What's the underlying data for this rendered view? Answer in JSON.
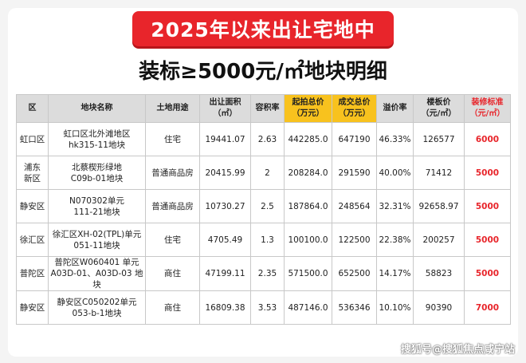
{
  "banner": "2025年以来出让宅地中",
  "subtitle": "装标≥5000元/㎡地块明细",
  "headers": [
    "区",
    "地块名称",
    "土地用途",
    "出让面积\n（㎡）",
    "容积率",
    "起拍总价\n（万元）",
    "成交总价\n（万元）",
    "溢价率",
    "楼板价\n（元/㎡）",
    "装修标准\n（元/㎡）"
  ],
  "rows": [
    {
      "district": "虹口区",
      "name_l1": "虹口区北外滩地区",
      "name_l2": "hk315-11地块",
      "use": "住宅",
      "area": "19441.07",
      "far": "2.63",
      "start": "442285.0",
      "deal": "647190",
      "premium": "46.33%",
      "floor": "126577",
      "deco": "6000"
    },
    {
      "district": "浦东\n新区",
      "name_l1": "北蔡楔形绿地",
      "name_l2": "C09b-01地块",
      "use": "普通商品房",
      "area": "20415.99",
      "far": "2",
      "start": "208284.0",
      "deal": "291590",
      "premium": "40.00%",
      "floor": "71412",
      "deco": "5000"
    },
    {
      "district": "静安区",
      "name_l1": "N070302单元",
      "name_l2": "111-21地块",
      "use": "普通商品房",
      "area": "10730.27",
      "far": "2.5",
      "start": "187864.0",
      "deal": "248564",
      "premium": "32.31%",
      "floor": "92658.97",
      "deco": "5000"
    },
    {
      "district": "徐汇区",
      "name_l1": "徐汇区XH-02(TPL)单元",
      "name_l2": "051-11地块",
      "use": "住宅",
      "area": "4705.49",
      "far": "1.3",
      "start": "100100.0",
      "deal": "122500",
      "premium": "22.38%",
      "floor": "200257",
      "deco": "5000"
    },
    {
      "district": "普陀区",
      "name_l1": "普陀区W060401 单元",
      "name_l2": "A03D-01、A03D-03 地块",
      "use": "商住",
      "area": "47199.11",
      "far": "2.35",
      "start": "571500.0",
      "deal": "652500",
      "premium": "14.17%",
      "floor": "58823",
      "deco": "5000"
    },
    {
      "district": "静安区",
      "name_l1": "静安区C050202单元",
      "name_l2": "053-b-1地块",
      "use": "商住",
      "area": "16809.38",
      "far": "3.53",
      "start": "487146.0",
      "deal": "536346",
      "premium": "10.10%",
      "floor": "90390",
      "deco": "7000"
    }
  ],
  "watermark": "搜狐号@搜狐焦点咸宁站"
}
